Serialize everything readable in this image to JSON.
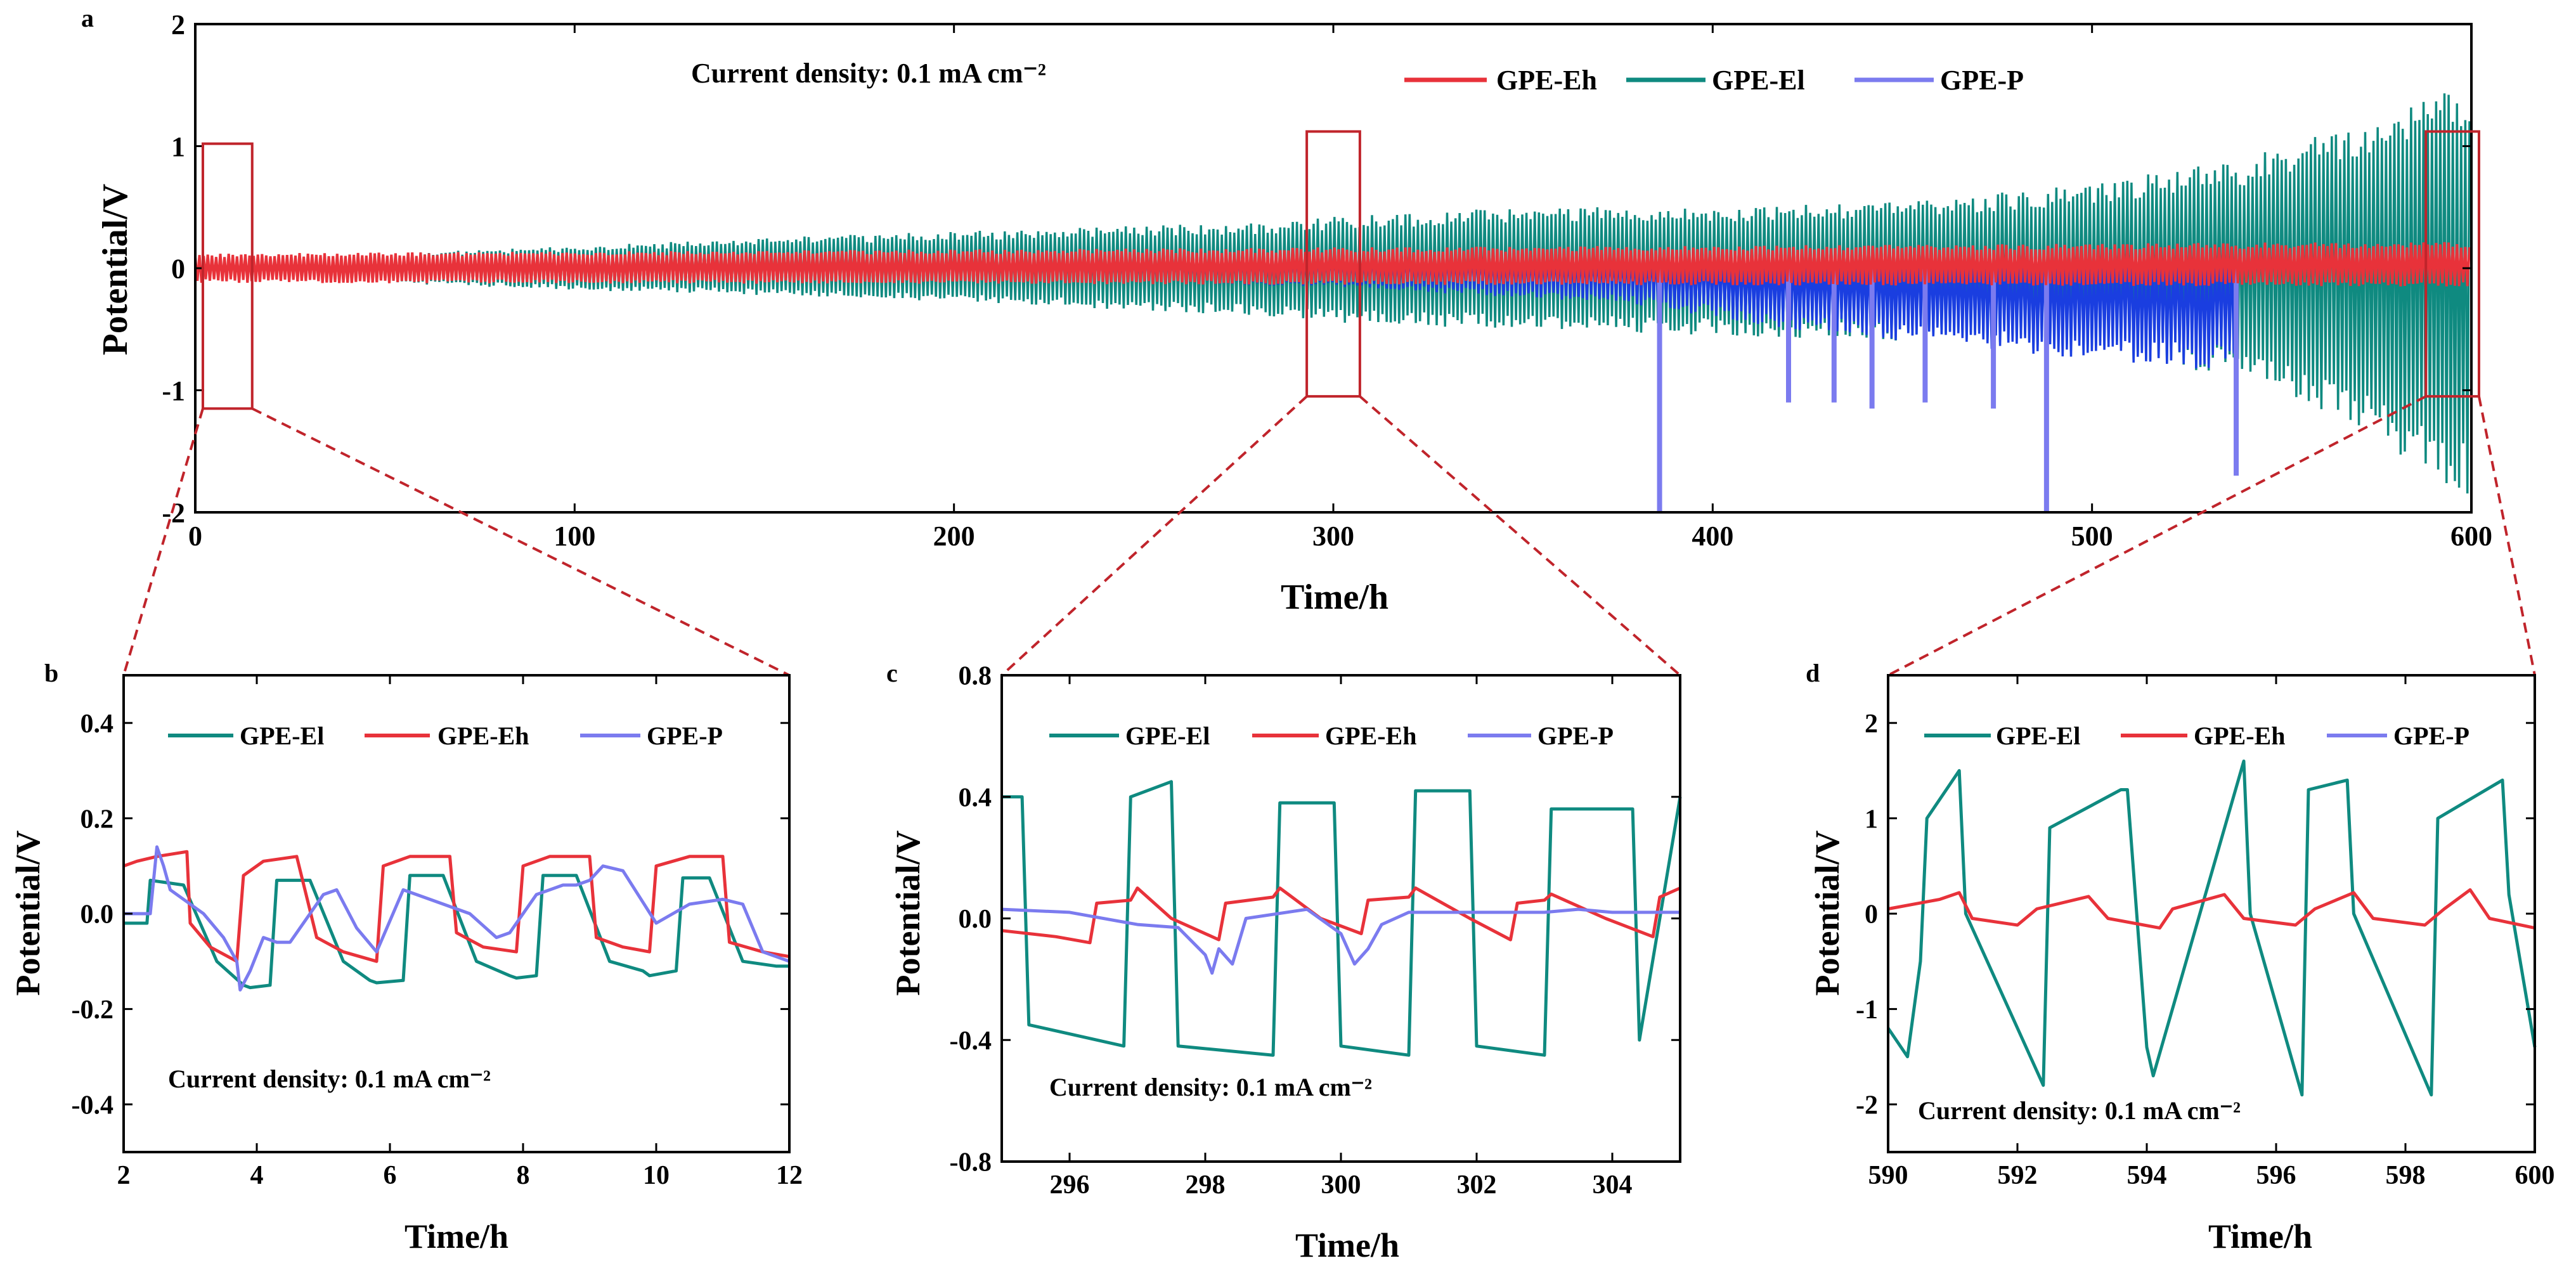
{
  "colors": {
    "eh": "#e8323a",
    "el": "#0f8a80",
    "p": "#7b7bef",
    "p_dark": "#1a3ee0",
    "zoom_box": "#c0242b"
  },
  "chart_data": [
    {
      "id": "a",
      "type": "line",
      "panel_label": "a",
      "xlabel": "Time/h",
      "ylabel": "Potential/V",
      "xlim": [
        0,
        600
      ],
      "ylim": [
        -2,
        2
      ],
      "xticks": [
        "0",
        "100",
        "200",
        "300",
        "400",
        "500",
        "600"
      ],
      "xtick_values": [
        0,
        100,
        200,
        300,
        400,
        500,
        600
      ],
      "yticks": [
        "2",
        "1",
        "0",
        "-1",
        "-2"
      ],
      "ytick_values": [
        2,
        1,
        0,
        -1,
        -2
      ],
      "annotation": "Current density: 0.1 mA cm⁻²",
      "legend": [
        "GPE-Eh",
        "GPE-El",
        "GPE-P"
      ],
      "series": [
        {
          "name": "GPE-El",
          "envelope_t": [
            0,
            50,
            100,
            150,
            200,
            250,
            288,
            300,
            350,
            400,
            450,
            500,
            540,
            570,
            600
          ],
          "envelope_upper": [
            0.1,
            0.12,
            0.18,
            0.25,
            0.3,
            0.35,
            0.38,
            0.42,
            0.5,
            0.5,
            0.55,
            0.7,
            0.9,
            1.2,
            1.55
          ],
          "envelope_lower": [
            -0.1,
            -0.12,
            -0.18,
            -0.22,
            -0.28,
            -0.35,
            -0.4,
            -0.45,
            -0.5,
            -0.55,
            -0.6,
            -0.7,
            -0.9,
            -1.3,
            -1.9
          ]
        },
        {
          "name": "GPE-P",
          "end_t": 538,
          "envelope_t": [
            0,
            100,
            200,
            300,
            380,
            420,
            480,
            538
          ],
          "envelope_upper": [
            0.06,
            0.08,
            0.1,
            0.12,
            0.15,
            0.15,
            0.18,
            0.2
          ],
          "envelope_lower": [
            -0.06,
            -0.08,
            -0.1,
            -0.15,
            -0.3,
            -0.5,
            -0.7,
            -0.85
          ],
          "spikes": [
            {
              "t": 386,
              "v": -2.0
            },
            {
              "t": 420,
              "v": -1.1
            },
            {
              "t": 432,
              "v": -1.1
            },
            {
              "t": 442,
              "v": -1.15
            },
            {
              "t": 456,
              "v": -1.1
            },
            {
              "t": 474,
              "v": -1.15
            },
            {
              "t": 488,
              "v": -2.0
            },
            {
              "t": 538,
              "v": -1.7
            }
          ]
        },
        {
          "name": "GPE-Eh",
          "envelope_t": [
            0,
            600
          ],
          "envelope_upper": [
            0.12,
            0.22
          ],
          "envelope_lower": [
            -0.12,
            -0.15
          ]
        }
      ],
      "zoom_boxes": [
        {
          "x0": 2,
          "x1": 15,
          "y0": -1.15,
          "y1": 1.02
        },
        {
          "x0": 293,
          "x1": 307,
          "y0": -1.05,
          "y1": 1.12
        },
        {
          "x0": 588,
          "x1": 602,
          "y0": -1.05,
          "y1": 1.12
        }
      ]
    },
    {
      "id": "b",
      "type": "line",
      "panel_label": "b",
      "xlabel": "Time/h",
      "ylabel": "Potential/V",
      "xlim": [
        2,
        12
      ],
      "ylim": [
        -0.5,
        0.5
      ],
      "xticks": [
        "2",
        "4",
        "6",
        "8",
        "10",
        "12"
      ],
      "xtick_values": [
        2,
        4,
        6,
        8,
        10,
        12
      ],
      "yticks": [
        "0.4",
        "0.2",
        "0.0",
        "-0.2",
        "-0.4"
      ],
      "ytick_values": [
        0.4,
        0.2,
        0.0,
        -0.2,
        -0.4
      ],
      "annotation": "Current density: 0.1 mA cm⁻²",
      "legend": [
        "GPE-El",
        "GPE-Eh",
        "GPE-P"
      ],
      "series": [
        {
          "name": "GPE-El",
          "x": [
            2,
            2.35,
            2.4,
            2.9,
            3.4,
            3.8,
            3.9,
            4.2,
            4.3,
            4.8,
            5.3,
            5.7,
            5.8,
            6.2,
            6.3,
            6.8,
            7.3,
            7.8,
            7.9,
            8.2,
            8.3,
            8.8,
            9.3,
            9.8,
            9.9,
            10.3,
            10.4,
            10.8,
            11.3,
            11.8,
            12
          ],
          "y": [
            -0.02,
            -0.02,
            0.07,
            0.06,
            -0.1,
            -0.15,
            -0.155,
            -0.15,
            0.07,
            0.07,
            -0.1,
            -0.14,
            -0.145,
            -0.14,
            0.08,
            0.08,
            -0.1,
            -0.13,
            -0.135,
            -0.13,
            0.08,
            0.08,
            -0.1,
            -0.12,
            -0.13,
            -0.12,
            0.075,
            0.075,
            -0.1,
            -0.11,
            -0.11
          ]
        },
        {
          "name": "GPE-Eh",
          "x": [
            2,
            2.2,
            2.5,
            2.95,
            3.0,
            3.3,
            3.7,
            3.8,
            4.1,
            4.6,
            4.9,
            5.3,
            5.8,
            5.9,
            6.3,
            6.9,
            7.0,
            7.4,
            7.9,
            8.0,
            8.4,
            9.0,
            9.1,
            9.5,
            9.9,
            10.0,
            10.5,
            11.0,
            11.1,
            11.6,
            12
          ],
          "y": [
            0.1,
            0.11,
            0.12,
            0.13,
            -0.02,
            -0.07,
            -0.1,
            0.08,
            0.11,
            0.12,
            -0.05,
            -0.08,
            -0.1,
            0.1,
            0.12,
            0.12,
            -0.04,
            -0.07,
            -0.08,
            0.1,
            0.12,
            0.12,
            -0.05,
            -0.07,
            -0.08,
            0.1,
            0.12,
            0.12,
            -0.06,
            -0.08,
            -0.09
          ]
        },
        {
          "name": "GPE-P",
          "x": [
            2,
            2.4,
            2.5,
            2.6,
            2.7,
            3.2,
            3.5,
            3.7,
            3.75,
            3.9,
            4.1,
            4.3,
            4.5,
            5.0,
            5.2,
            5.5,
            5.8,
            6.2,
            6.4,
            6.6,
            7.2,
            7.6,
            7.8,
            8.2,
            8.6,
            8.8,
            9.0,
            9.2,
            9.5,
            10.0,
            10.5,
            11.0,
            11.3,
            11.6,
            12
          ],
          "y": [
            0.0,
            0.0,
            0.14,
            0.1,
            0.05,
            0.0,
            -0.05,
            -0.1,
            -0.16,
            -0.12,
            -0.05,
            -0.06,
            -0.06,
            0.04,
            0.05,
            -0.03,
            -0.08,
            0.05,
            0.04,
            0.03,
            0.0,
            -0.05,
            -0.04,
            0.04,
            0.06,
            0.06,
            0.07,
            0.1,
            0.09,
            -0.02,
            0.02,
            0.03,
            0.02,
            -0.08,
            -0.1
          ]
        }
      ]
    },
    {
      "id": "c",
      "type": "line",
      "panel_label": "c",
      "xlabel": "Time/h",
      "ylabel": "Potential/V",
      "xlim": [
        295,
        305
      ],
      "ylim": [
        -0.8,
        0.8
      ],
      "xticks": [
        "296",
        "298",
        "300",
        "302",
        "304"
      ],
      "xtick_values": [
        296,
        298,
        300,
        302,
        304
      ],
      "yticks": [
        "0.8",
        "0.4",
        "0.0",
        "-0.4",
        "-0.8"
      ],
      "ytick_values": [
        0.8,
        0.4,
        0.0,
        -0.4,
        -0.8
      ],
      "annotation": "Current density: 0.1 mA cm⁻²",
      "legend": [
        "GPE-El",
        "GPE-Eh",
        "GPE-P"
      ],
      "series": [
        {
          "name": "GPE-El",
          "x": [
            295,
            295.3,
            295.4,
            296.8,
            296.9,
            297.5,
            297.6,
            299.0,
            299.1,
            299.9,
            300.0,
            301.0,
            301.1,
            301.9,
            302.0,
            303.0,
            303.1,
            304.3,
            304.4,
            305
          ],
          "y": [
            0.4,
            0.4,
            -0.35,
            -0.42,
            0.4,
            0.45,
            -0.42,
            -0.45,
            0.38,
            0.38,
            -0.42,
            -0.45,
            0.42,
            0.42,
            -0.42,
            -0.45,
            0.36,
            0.36,
            -0.4,
            0.4
          ]
        },
        {
          "name": "GPE-Eh",
          "x": [
            295,
            295.8,
            296.3,
            296.4,
            296.9,
            297.0,
            297.5,
            298.2,
            298.3,
            299.0,
            299.1,
            299.7,
            300.3,
            300.4,
            301.0,
            301.1,
            301.9,
            302.5,
            302.6,
            303.0,
            303.1,
            303.9,
            304.6,
            304.7,
            305
          ],
          "y": [
            -0.04,
            -0.06,
            -0.08,
            0.05,
            0.06,
            0.1,
            0.0,
            -0.07,
            0.05,
            0.07,
            0.1,
            0.0,
            -0.05,
            0.06,
            0.07,
            0.1,
            0.0,
            -0.07,
            0.05,
            0.06,
            0.08,
            0.0,
            -0.06,
            0.07,
            0.1
          ]
        },
        {
          "name": "GPE-P",
          "x": [
            295,
            296,
            297,
            297.6,
            298.0,
            298.1,
            298.2,
            298.4,
            298.6,
            299.5,
            300.0,
            300.2,
            300.4,
            300.6,
            301.0,
            302.0,
            303.0,
            303.5,
            304.0,
            304.5,
            305
          ],
          "y": [
            0.03,
            0.02,
            -0.02,
            -0.03,
            -0.12,
            -0.18,
            -0.1,
            -0.15,
            0.0,
            0.03,
            -0.05,
            -0.15,
            -0.1,
            -0.02,
            0.02,
            0.02,
            0.02,
            0.03,
            0.02,
            0.02,
            0.02
          ]
        }
      ]
    },
    {
      "id": "d",
      "type": "line",
      "panel_label": "d",
      "xlabel": "Time/h",
      "ylabel": "Potential/V",
      "xlim": [
        590,
        600
      ],
      "ylim": [
        -2.5,
        2.5
      ],
      "xticks": [
        "590",
        "592",
        "594",
        "596",
        "598",
        "600"
      ],
      "xtick_values": [
        590,
        592,
        594,
        596,
        598,
        600
      ],
      "yticks": [
        "2",
        "1",
        "0",
        "-1",
        "-2"
      ],
      "ytick_values": [
        2,
        1,
        0,
        -1,
        -2
      ],
      "annotation": "Current density: 0.1 mA cm⁻²",
      "legend": [
        "GPE-El",
        "GPE-Eh",
        "GPE-P"
      ],
      "series": [
        {
          "name": "GPE-El",
          "x": [
            590,
            590.3,
            590.5,
            590.6,
            591.1,
            591.2,
            592.4,
            592.5,
            593.6,
            593.7,
            594.0,
            594.1,
            595.5,
            595.6,
            596.4,
            596.5,
            597.1,
            597.2,
            598.4,
            598.5,
            599.5,
            599.6,
            600
          ],
          "y": [
            -1.2,
            -1.5,
            -0.5,
            1.0,
            1.5,
            0.0,
            -1.8,
            0.9,
            1.3,
            1.3,
            -1.4,
            -1.7,
            1.6,
            0.0,
            -1.9,
            1.3,
            1.4,
            0.0,
            -1.9,
            1.0,
            1.4,
            0.2,
            -1.4
          ]
        },
        {
          "name": "GPE-Eh",
          "x": [
            590,
            590.8,
            591.1,
            591.3,
            592.0,
            592.3,
            593.1,
            593.4,
            594.2,
            594.4,
            595.2,
            595.5,
            596.3,
            596.6,
            597.2,
            597.5,
            598.3,
            598.6,
            599.0,
            599.3,
            600
          ],
          "y": [
            0.05,
            0.15,
            0.22,
            -0.05,
            -0.12,
            0.05,
            0.18,
            -0.05,
            -0.15,
            0.05,
            0.2,
            -0.05,
            -0.12,
            0.05,
            0.22,
            -0.05,
            -0.12,
            0.05,
            0.25,
            -0.05,
            -0.15
          ]
        }
      ]
    }
  ]
}
